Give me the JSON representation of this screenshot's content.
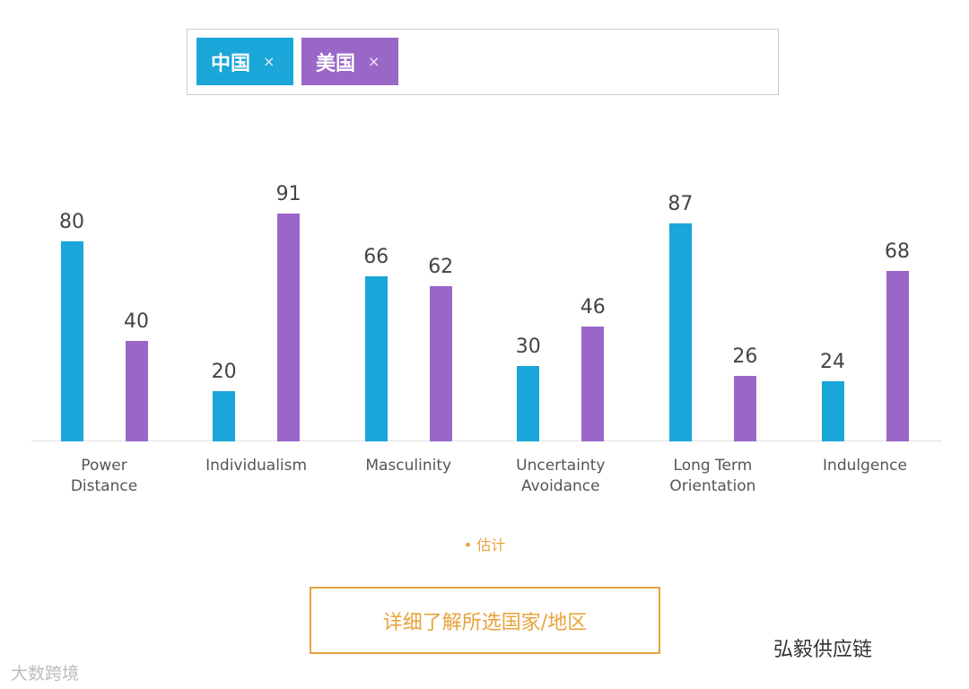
{
  "close_icon": "×",
  "chart_data": {
    "type": "bar",
    "categories": [
      "Power\nDistance",
      "Individualism",
      "Masculinity",
      "Uncertainty\nAvoidance",
      "Long Term\nOrientation",
      "Indulgence"
    ],
    "series": [
      {
        "name": "中国",
        "color": "#1aa6d9",
        "values": [
          80,
          20,
          66,
          30,
          87,
          24
        ]
      },
      {
        "name": "美国",
        "color": "#9a67c8",
        "values": [
          40,
          91,
          62,
          46,
          26,
          68
        ]
      }
    ],
    "note": "估计"
  },
  "button": "详细了解所选国家/地区",
  "watermarks": [
    "大数跨境",
    "弘毅供应链"
  ]
}
